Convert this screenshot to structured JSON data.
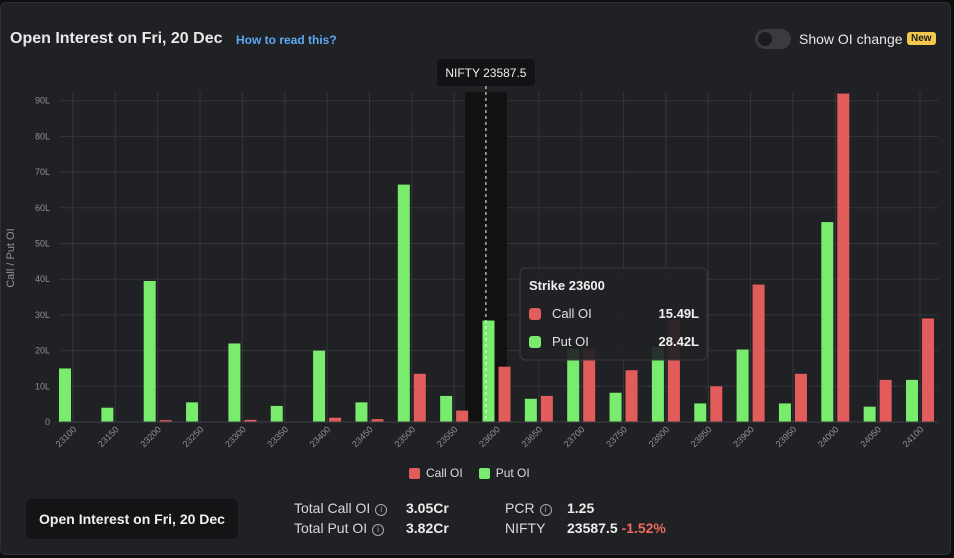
{
  "header": {
    "title": "Open Interest on Fri, 20 Dec",
    "help_link": "How to read this?",
    "toggle_label": "Show OI change",
    "new_badge": "New"
  },
  "colors": {
    "call": "#e35c5c",
    "put": "#79ec6e",
    "grid": "#34363b",
    "text": "#8f9196"
  },
  "chart_data": {
    "type": "bar",
    "ylabel": "Call / Put OI",
    "ylim": [
      0,
      92
    ],
    "yticks": [
      "0",
      "10L",
      "20L",
      "30L",
      "40L",
      "50L",
      "60L",
      "70L",
      "80L",
      "90L"
    ],
    "ytick_values": [
      0,
      10,
      20,
      30,
      40,
      50,
      60,
      70,
      80,
      90
    ],
    "categories": [
      "23100",
      "23150",
      "23200",
      "23250",
      "23300",
      "23350",
      "23400",
      "23450",
      "23500",
      "23550",
      "23600",
      "23650",
      "23700",
      "23750",
      "23800",
      "23850",
      "23900",
      "23950",
      "24000",
      "24050",
      "24100"
    ],
    "series": [
      {
        "name": "Call OI",
        "values": [
          0,
          0,
          0.5,
          0,
          0.6,
          0,
          1.2,
          0.8,
          13.5,
          3.2,
          15.49,
          7.3,
          20.5,
          14.5,
          28.5,
          10,
          38.5,
          13.5,
          92,
          11.8,
          29
        ]
      },
      {
        "name": "Put OI",
        "values": [
          15,
          4,
          39.5,
          5.5,
          22,
          4.5,
          20,
          5.5,
          66.5,
          7.3,
          28.42,
          6.5,
          20.5,
          8.2,
          21,
          5.2,
          20.3,
          5.2,
          56,
          4.3,
          11.8
        ]
      }
    ],
    "marker": {
      "label": "NIFTY 23587.5",
      "value": 23587.5
    },
    "highlight_category": "23600",
    "tooltip": {
      "title": "Strike 23600",
      "rows": [
        {
          "label": "Call OI",
          "value": "15.49L"
        },
        {
          "label": "Put OI",
          "value": "28.42L"
        }
      ]
    },
    "legend": [
      "Call OI",
      "Put OI"
    ]
  },
  "footer": {
    "date_button": "Open Interest on Fri, 20 Dec",
    "total_call_label": "Total Call OI",
    "total_call_value": "3.05Cr",
    "total_put_label": "Total Put OI",
    "total_put_value": "3.82Cr",
    "pcr_label": "PCR",
    "pcr_value": "1.25",
    "nifty_label": "NIFTY",
    "nifty_value": "23587.5",
    "nifty_change": "-1.52%"
  }
}
